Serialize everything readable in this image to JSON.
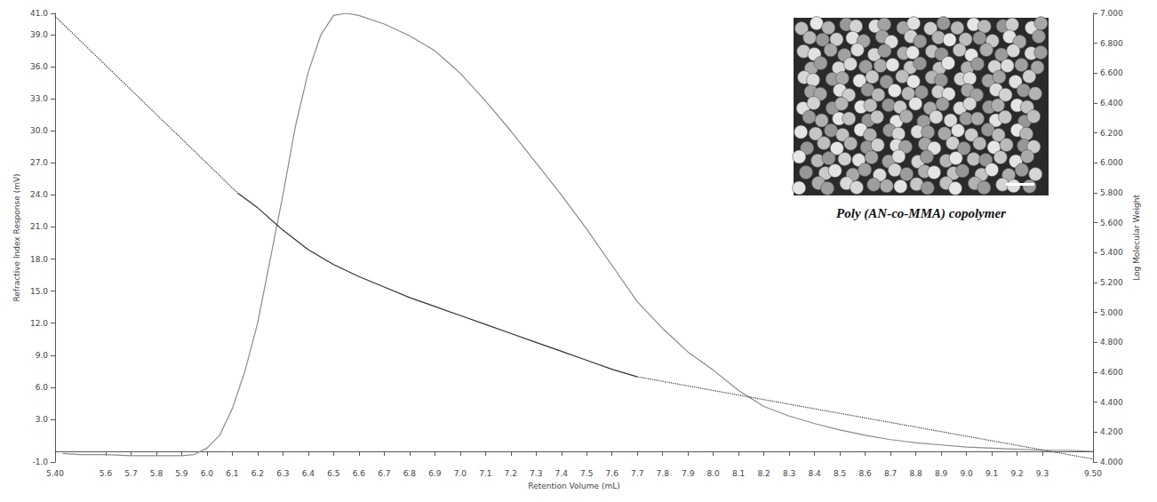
{
  "chart_data": {
    "type": "line",
    "x_label": "Retention Volume (mL)",
    "y_label": "Refractive Index Response (mV)",
    "y2_label": "Log Molecular Weight",
    "annotations": [
      "Poly (AN-co-MMA) copolymer"
    ],
    "grid": false,
    "xlim": [
      5.4,
      9.5
    ],
    "xticks": [
      {
        "value": 5.4,
        "label": "5.40"
      },
      5.6,
      5.7,
      5.8,
      5.9,
      {
        "value": 6.0,
        "label": "6.0"
      },
      6.1,
      6.2,
      6.3,
      6.4,
      6.5,
      6.6,
      6.7,
      6.8,
      6.9,
      {
        "value": 7.0,
        "label": "7.0"
      },
      7.1,
      7.2,
      7.3,
      7.4,
      7.5,
      7.6,
      7.7,
      7.8,
      7.9,
      {
        "value": 8.0,
        "label": "8.0"
      },
      8.1,
      8.2,
      8.3,
      8.4,
      8.5,
      8.6,
      8.7,
      8.8,
      8.9,
      {
        "value": 9.0,
        "label": "9.0"
      },
      9.1,
      9.2,
      9.3,
      {
        "value": 9.5,
        "label": "9.50"
      }
    ],
    "ylim": [
      -1,
      41
    ],
    "yticks": [
      {
        "value": -1,
        "label": "-1.0"
      },
      {
        "value": 3,
        "label": "3.0"
      },
      {
        "value": 6,
        "label": "6.0"
      },
      {
        "value": 9,
        "label": "9.0"
      },
      {
        "value": 12,
        "label": "12.0"
      },
      {
        "value": 15,
        "label": "15.0"
      },
      {
        "value": 18,
        "label": "18.0"
      },
      {
        "value": 21,
        "label": "21.0"
      },
      {
        "value": 24,
        "label": "24.0"
      },
      {
        "value": 27,
        "label": "27.0"
      },
      {
        "value": 30,
        "label": "30.0"
      },
      {
        "value": 33,
        "label": "33.0"
      },
      {
        "value": 36,
        "label": "36.0"
      },
      {
        "value": 39,
        "label": "39.0"
      },
      {
        "value": 41,
        "label": "41.0"
      }
    ],
    "y2lim": [
      4,
      7
    ],
    "y2ticks": [
      {
        "value": 4.0,
        "label": "4.000"
      },
      {
        "value": 4.2,
        "label": "4.200"
      },
      {
        "value": 4.4,
        "label": "4.400"
      },
      {
        "value": 4.6,
        "label": "4.600"
      },
      {
        "value": 4.8,
        "label": "4.800"
      },
      {
        "value": 5.0,
        "label": "5.000"
      },
      {
        "value": 5.2,
        "label": "5.200"
      },
      {
        "value": 5.4,
        "label": "5.400"
      },
      {
        "value": 5.6,
        "label": "5.600"
      },
      {
        "value": 5.8,
        "label": "5.800"
      },
      {
        "value": 6.0,
        "label": "6.000"
      },
      {
        "value": 6.2,
        "label": "6.200"
      },
      {
        "value": 6.4,
        "label": "6.400"
      },
      {
        "value": 6.6,
        "label": "6.600"
      },
      {
        "value": 6.8,
        "label": "6.800"
      },
      {
        "value": 7.0,
        "label": "7.000"
      }
    ],
    "series": [
      {
        "axis": "y",
        "color": "#8a8a8a",
        "line_style": "solid",
        "x": [
          5.43,
          5.5,
          5.6,
          5.7,
          5.8,
          5.9,
          5.95,
          6.0,
          6.05,
          6.1,
          6.15,
          6.2,
          6.25,
          6.3,
          6.35,
          6.4,
          6.45,
          6.5,
          6.55,
          6.6,
          6.7,
          6.8,
          6.9,
          7.0,
          7.1,
          7.2,
          7.3,
          7.4,
          7.5,
          7.6,
          7.7,
          7.8,
          7.9,
          8.0,
          8.1,
          8.2,
          8.3,
          8.4,
          8.5,
          8.6,
          8.7,
          8.8,
          8.9,
          9.0,
          9.1,
          9.2,
          9.3,
          9.4,
          9.5
        ],
        "values": [
          -0.2,
          -0.3,
          -0.3,
          -0.4,
          -0.4,
          -0.4,
          -0.3,
          0.3,
          1.5,
          4.0,
          7.5,
          12.0,
          18.0,
          24.0,
          30.5,
          35.5,
          39.0,
          40.8,
          41.0,
          40.8,
          40.0,
          38.9,
          37.5,
          35.4,
          32.8,
          30.0,
          27.0,
          24.0,
          20.8,
          17.4,
          14.0,
          11.5,
          9.3,
          7.6,
          5.7,
          4.2,
          3.3,
          2.6,
          2.0,
          1.5,
          1.1,
          0.8,
          0.6,
          0.4,
          0.3,
          0.2,
          0.1,
          0.1,
          0.0
        ]
      },
      {
        "axis": "y2",
        "color": "#333333",
        "line_style": "dotted",
        "x": [
          5.4,
          6.12
        ],
        "values": [
          6.98,
          5.8
        ]
      },
      {
        "axis": "y2",
        "color": "#333333",
        "line_style": "solid",
        "x": [
          6.12,
          6.2,
          6.3,
          6.4,
          6.5,
          6.6,
          6.7,
          6.8,
          6.9,
          7.0,
          7.1,
          7.2,
          7.3,
          7.4,
          7.5,
          7.6,
          7.7
        ],
        "values": [
          5.8,
          5.7,
          5.55,
          5.42,
          5.32,
          5.24,
          5.17,
          5.1,
          5.04,
          4.98,
          4.92,
          4.86,
          4.8,
          4.74,
          4.68,
          4.62,
          4.57
        ]
      },
      {
        "axis": "y2",
        "color": "#333333",
        "line_style": "dotted",
        "x": [
          7.7,
          9.5
        ],
        "values": [
          4.57,
          4.02
        ]
      }
    ]
  }
}
